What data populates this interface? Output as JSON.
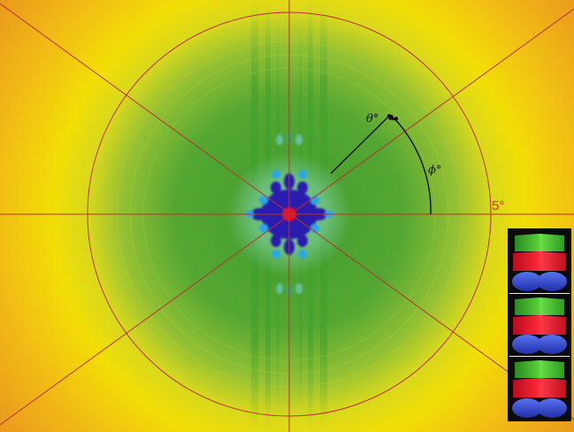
{
  "ring_label": "5°",
  "theta_label": "θ°",
  "phi_label": "ϕ°",
  "colors": {
    "background_yellow": "#f2e300",
    "outer_orange": "#e88a1c",
    "halo_green": "#2f9a2a",
    "core_blue": "#2a1fb0",
    "spot_light_blue": "#29a6e8",
    "center_red": "#e8102a",
    "guide_lines": "#b8322a"
  },
  "inset": {
    "stack_count": 3,
    "layer_colors": [
      "#38b02a",
      "#e3142a",
      "#2a48d8"
    ]
  }
}
